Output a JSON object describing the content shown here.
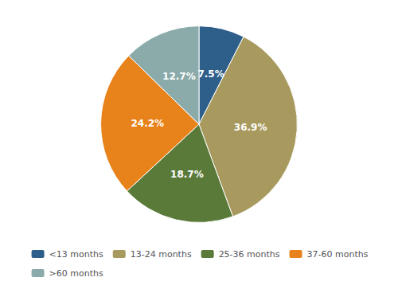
{
  "chart_data": {
    "type": "pie",
    "categories": [
      "<13 months",
      "13-24 months",
      "25-36 months",
      "37-60 months",
      ">60 months"
    ],
    "values": [
      7.5,
      36.9,
      18.7,
      24.2,
      12.7
    ],
    "value_labels": [
      "7.5%",
      "36.9%",
      "18.7%",
      "24.2%",
      "12.7%"
    ],
    "colors": [
      "#2e5f8a",
      "#a89a5e",
      "#5a7a3a",
      "#e8821a",
      "#8aabaa"
    ],
    "data_labels": true,
    "legend": "bottom"
  }
}
